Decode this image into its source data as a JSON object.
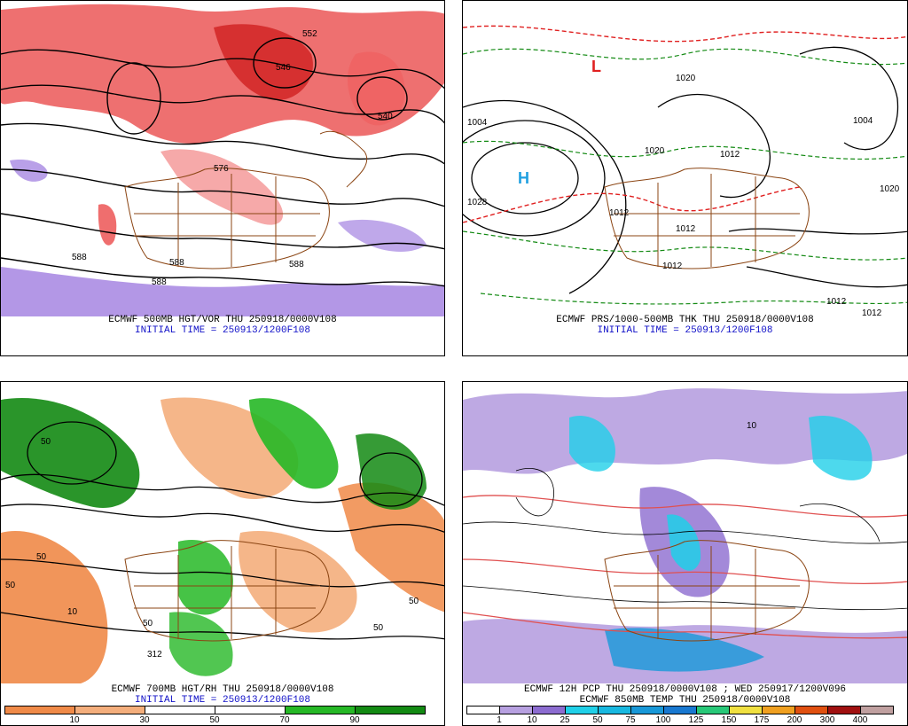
{
  "panels": [
    {
      "title": "ECMWF 500MB HGT/VOR THU 250918/0000V108",
      "initial_time": "INITIAL TIME = 250913/1200F108",
      "labels": [
        "552",
        "546",
        "540",
        "576",
        "588",
        "588",
        "588",
        "588"
      ]
    },
    {
      "title": "ECMWF PRS/1000-500MB THK THU 250918/0000V108",
      "initial_time": "INITIAL TIME = 250913/1200F108",
      "labels": [
        "1004",
        "1028",
        "1020",
        "1020",
        "1012",
        "1012",
        "1012",
        "1012",
        "1020",
        "1004",
        "1012",
        "1012"
      ],
      "pressure_centers": [
        "H",
        "L"
      ]
    },
    {
      "title": "ECMWF 700MB HGT/RH THU 250918/0000V108",
      "initial_time": "INITIAL TIME = 250913/1200F108",
      "labels": [
        "50",
        "50",
        "50",
        "10",
        "50",
        "312",
        "50",
        "50"
      ],
      "colorbar": {
        "labels": [
          "10",
          "30",
          "50",
          "70",
          "90"
        ],
        "colors": [
          "#f08a48",
          "#f4ae7c",
          "#ffffff",
          "#ffffff",
          "#26b826",
          "#138a13"
        ]
      }
    },
    {
      "title": "ECMWF 12H PCP THU 250918/0000V108 ; WED 250917/1200V096",
      "subtitle": "ECMWF 850MB TEMP THU 250918/0000V108",
      "labels": [
        "10"
      ],
      "colorbar": {
        "labels": [
          "1",
          "10",
          "25",
          "50",
          "75",
          "100",
          "125",
          "150",
          "175",
          "200",
          "300",
          "400"
        ],
        "colors": [
          "#ffffff",
          "#b7a0e0",
          "#8c6cd0",
          "#20d0e8",
          "#18b8e0",
          "#1898d8",
          "#1878d0",
          "#28c878",
          "#f0e040",
          "#f0a020",
          "#e05010",
          "#a01010",
          "#c0a0a0"
        ]
      }
    }
  ]
}
